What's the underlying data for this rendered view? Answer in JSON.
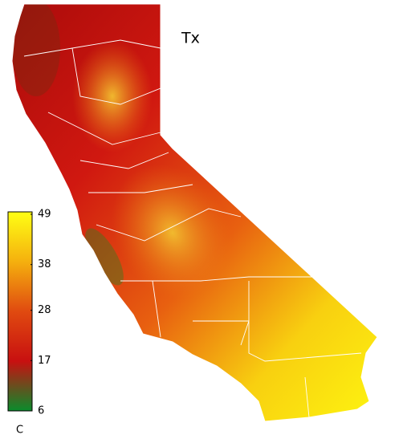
{
  "title": "Tx",
  "colorbar": {
    "lim": [
      6,
      49
    ],
    "ticks": [
      6,
      17,
      28,
      38,
      49
    ],
    "unit": "C",
    "colors": [
      "#0a8c2c",
      "#c81010",
      "#e04a10",
      "#f5b00e",
      "#ffff14"
    ]
  }
}
